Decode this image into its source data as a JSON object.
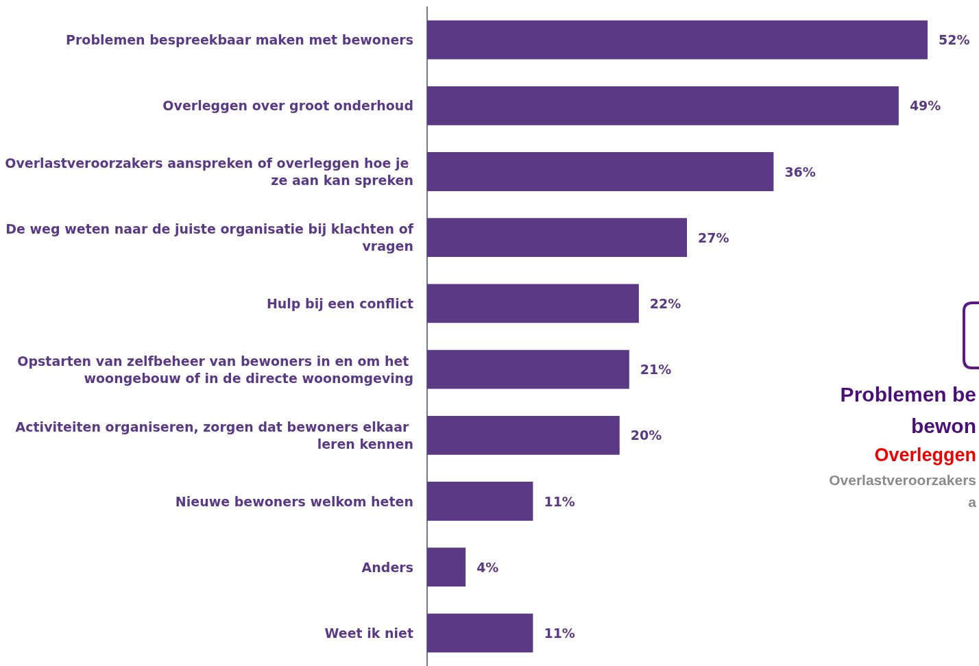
{
  "chart_data": {
    "type": "bar",
    "orientation": "horizontal",
    "categories": [
      "Problemen bespreekbaar maken met bewoners",
      "Overleggen over groot onderhoud",
      "Overlastveroorzakers aanspreken of overleggen hoe je ze aan kan spreken",
      "De weg weten naar de juiste organisatie bij klachten of vragen",
      "Hulp bij een conflict",
      "Opstarten van zelfbeheer van bewoners in en om het woongebouw of in de directe woonomgeving",
      "Activiteiten organiseren, zorgen dat bewoners elkaar leren kennen",
      "Nieuwe bewoners welkom heten",
      "Anders",
      "Weet ik niet"
    ],
    "values": [
      52,
      49,
      36,
      27,
      22,
      21,
      20,
      11,
      4,
      11
    ],
    "value_labels": [
      "52%",
      "49%",
      "36%",
      "27%",
      "22%",
      "21%",
      "20%",
      "11%",
      "4%",
      "11%"
    ],
    "color": "#5b3a85",
    "annotations": [
      "Problemen be",
      "bewon",
      "Overleggen",
      "Overlastveroorzakers",
      "a"
    ]
  }
}
